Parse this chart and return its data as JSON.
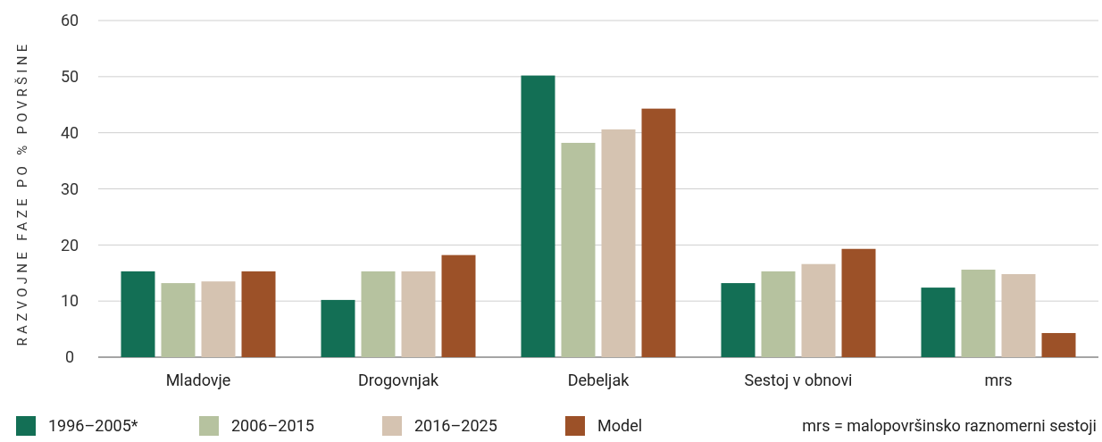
{
  "chart_data": {
    "type": "bar",
    "ylabel": "RAZVOJNE FAZE PO % POVRŠINE",
    "categories": [
      "Mladovje",
      "Drogovnjak",
      "Debeljak",
      "Sestoj v obnovi",
      "mrs"
    ],
    "series": [
      {
        "name": "1996–2005*",
        "color": "#136f55",
        "values": [
          15.3,
          10.2,
          50.2,
          13.2,
          12.4
        ]
      },
      {
        "name": "2006–2015",
        "color": "#b6c29f",
        "values": [
          13.2,
          15.3,
          38.2,
          15.3,
          15.6
        ]
      },
      {
        "name": "2016–2025",
        "color": "#d5c3b1",
        "values": [
          13.5,
          15.3,
          40.6,
          16.6,
          14.8
        ]
      },
      {
        "name": "Model",
        "color": "#9c5128",
        "values": [
          15.3,
          18.2,
          44.3,
          19.3,
          4.3
        ]
      }
    ],
    "ylim": [
      0,
      60
    ],
    "yticks": [
      0,
      10,
      20,
      30,
      40,
      50,
      60
    ],
    "grid": "y",
    "legend": "bottom",
    "annotations": [
      "mrs = malopovršinsko raznomerni sestoji"
    ]
  }
}
